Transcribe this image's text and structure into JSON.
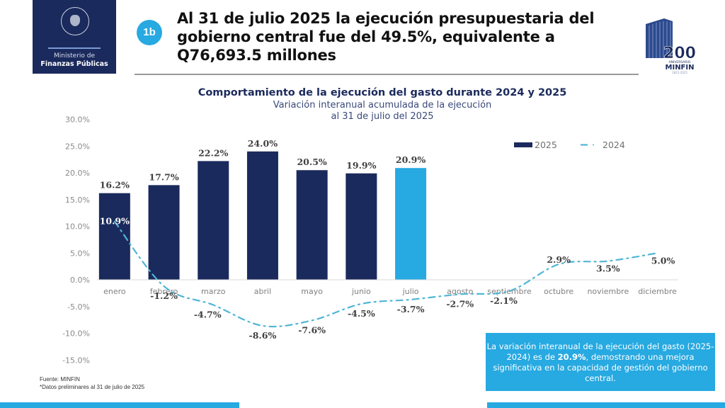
{
  "header": {
    "logo": {
      "icon": "guatemala-coat-of-arms-icon",
      "line1": "Ministerio de",
      "line2": "Finanzas Públicas"
    },
    "badge": "1b",
    "headline": "Al 31 de julio 2025 la ejecución presupuestaria del gobierno central fue del 49.5%, equivalente a Q76,693.5 millones",
    "anniversary_logo": {
      "icon": "minfin-building-icon",
      "number": "200",
      "subtitle": "ANIVERSARIO",
      "name": "MINFIN",
      "years": "1825-2025"
    }
  },
  "colors": {
    "navy": "#1b2a5c",
    "accent": "#27a9e1",
    "line_2024": "#4fb6d6"
  },
  "chart_data": {
    "type": "bar",
    "title": "Comportamiento de la ejecución del gasto  durante 2024 y 2025",
    "subtitle_line1": "Variación interanual acumulada de la ejecución",
    "subtitle_line2": "al 31 de julio del 2025",
    "xlabel": "",
    "ylabel": "",
    "ylim": [
      -15,
      30
    ],
    "yticks": [
      30,
      25,
      20,
      15,
      10,
      5,
      0,
      -5,
      -10,
      -15
    ],
    "ytick_labels": [
      "30.0%",
      "25.0%",
      "20.0%",
      "15.0%",
      "10.0%",
      "5.0%",
      "0.0%",
      "-5.0%",
      "-10.0%",
      "-15.0%"
    ],
    "categories": [
      "enero",
      "febrero",
      "marzo",
      "abril",
      "mayo",
      "junio",
      "julio",
      "agosto",
      "septiembre",
      "octubre",
      "noviembre",
      "diciembre"
    ],
    "legend_position": "top-right",
    "grid": false,
    "series": [
      {
        "name": "2025",
        "type": "bar",
        "values": [
          16.2,
          17.7,
          22.2,
          24.0,
          20.5,
          19.9,
          20.9,
          null,
          null,
          null,
          null,
          null
        ],
        "labels": [
          "16.2%",
          "17.7%",
          "22.2%",
          "24.0%",
          "20.5%",
          "19.9%",
          "20.9%"
        ],
        "highlight_index": 6
      },
      {
        "name": "2024",
        "type": "line",
        "style": "dash-dot",
        "values": [
          10.9,
          -1.2,
          -4.7,
          -8.6,
          -7.6,
          -4.5,
          -3.7,
          -2.7,
          -2.1,
          2.9,
          3.5,
          5.0
        ],
        "labels": [
          "10.9%",
          "-1.2%",
          "-4.7%",
          "-8.6%",
          "-7.6%",
          "-4.5%",
          "-3.7%",
          "-2.7%",
          "-2.1%",
          "2.9%",
          "3.5%",
          "5.0%"
        ]
      }
    ]
  },
  "footnotes": {
    "source": "Fuente: MINFIN",
    "note": "*Datos preliminares al 31 de julio de 2025"
  },
  "callout": {
    "text_before": "La variación interanual  de la ejecución del gasto (2025-2024)  es de ",
    "highlight": "20.9%",
    "text_after": ", demostrando una mejora significativa en la capacidad de gestión del gobierno central."
  }
}
